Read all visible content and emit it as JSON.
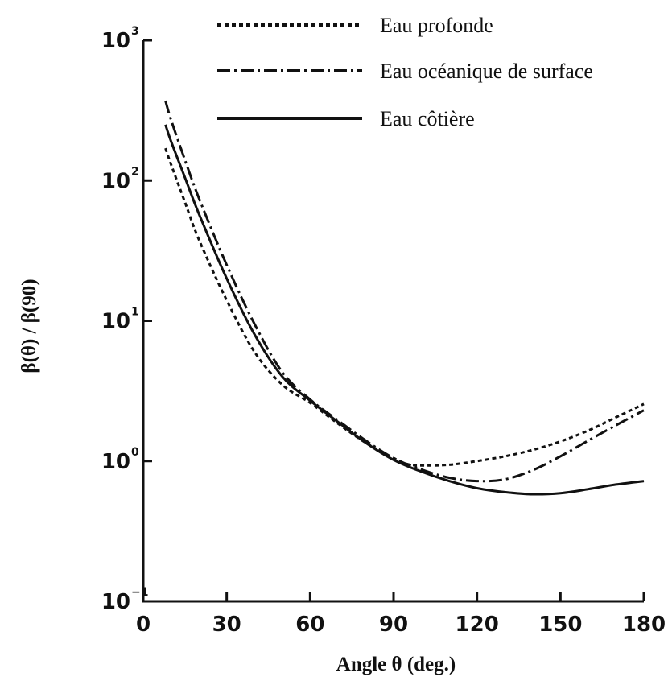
{
  "chart_data": {
    "type": "line",
    "title": "",
    "xlabel": "Angle θ (deg.)",
    "ylabel": "β(θ) / β(90)",
    "x_ticks": [
      0,
      30,
      60,
      90,
      120,
      150,
      180
    ],
    "xlim": [
      0,
      180
    ],
    "y_scale": "log",
    "ylim": [
      0.1,
      1000
    ],
    "y_ticks": [
      {
        "value": 0.1,
        "base": "10",
        "exp": "−1"
      },
      {
        "value": 1,
        "base": "10",
        "exp": "0"
      },
      {
        "value": 10,
        "base": "10",
        "exp": "1"
      },
      {
        "value": 100,
        "base": "10",
        "exp": "2"
      },
      {
        "value": 1000,
        "base": "10",
        "exp": "3"
      }
    ],
    "grid": false,
    "legend_position": "top-right",
    "series": [
      {
        "name": "Eau profonde",
        "style": "dotted",
        "x": [
          8,
          10,
          15,
          20,
          30,
          40,
          50,
          60,
          70,
          80,
          90,
          95,
          100,
          110,
          120,
          130,
          140,
          150,
          160,
          170,
          180
        ],
        "y": [
          170,
          130,
          70,
          38,
          14,
          6.0,
          3.5,
          2.6,
          1.85,
          1.35,
          1.05,
          0.95,
          0.93,
          0.94,
          1.0,
          1.08,
          1.2,
          1.38,
          1.65,
          2.05,
          2.55
        ]
      },
      {
        "name": "Eau océanique de surface",
        "style": "dash-dot",
        "x": [
          8,
          10,
          15,
          20,
          30,
          40,
          50,
          60,
          70,
          80,
          90,
          100,
          110,
          120,
          130,
          140,
          150,
          160,
          170,
          180
        ],
        "y": [
          370,
          270,
          140,
          75,
          25,
          9.5,
          4.3,
          2.75,
          1.95,
          1.4,
          1.05,
          0.87,
          0.76,
          0.72,
          0.74,
          0.86,
          1.08,
          1.4,
          1.8,
          2.3
        ]
      },
      {
        "name": "Eau côtière",
        "style": "solid",
        "x": [
          8,
          10,
          15,
          20,
          30,
          40,
          50,
          60,
          70,
          80,
          90,
          100,
          110,
          120,
          130,
          140,
          150,
          160,
          170,
          180
        ],
        "y": [
          250,
          190,
          105,
          58,
          20,
          8.0,
          4.0,
          2.7,
          1.9,
          1.35,
          1.02,
          0.84,
          0.72,
          0.64,
          0.6,
          0.58,
          0.59,
          0.63,
          0.68,
          0.72
        ]
      }
    ]
  }
}
